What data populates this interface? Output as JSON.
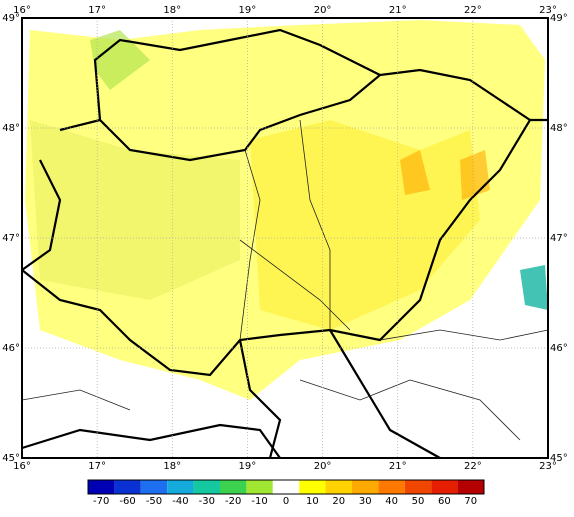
{
  "map": {
    "x_axis": {
      "lim": [
        16,
        23
      ],
      "ticks": [
        {
          "value": 16,
          "label": "16°"
        },
        {
          "value": 17,
          "label": "17°"
        },
        {
          "value": 18,
          "label": "18°"
        },
        {
          "value": 19,
          "label": "19°"
        },
        {
          "value": 20,
          "label": "20°"
        },
        {
          "value": 21,
          "label": "21°"
        },
        {
          "value": 22,
          "label": "22°"
        },
        {
          "value": 23,
          "label": "23°"
        }
      ]
    },
    "y_axis": {
      "lim": [
        45,
        49
      ],
      "ticks": [
        {
          "value": 45,
          "label": "45°"
        },
        {
          "value": 46,
          "label": "46°"
        },
        {
          "value": 47,
          "label": "47°"
        },
        {
          "value": 48,
          "label": "48°"
        },
        {
          "value": 49,
          "label": "49°"
        }
      ]
    }
  },
  "colorbar": {
    "lim": [
      -75,
      75
    ],
    "ticks": [
      -70,
      -60,
      -50,
      -40,
      -30,
      -20,
      -10,
      0,
      10,
      20,
      30,
      40,
      50,
      60,
      70
    ],
    "colors": [
      "#0000b4",
      "#0a32d2",
      "#1e6ef0",
      "#14aadc",
      "#14c8a0",
      "#3cd250",
      "#a0e632",
      "#ffffff",
      "#ffff00",
      "#ffd200",
      "#ffaa00",
      "#ff7800",
      "#f04600",
      "#e61e00",
      "#b40000"
    ]
  }
}
